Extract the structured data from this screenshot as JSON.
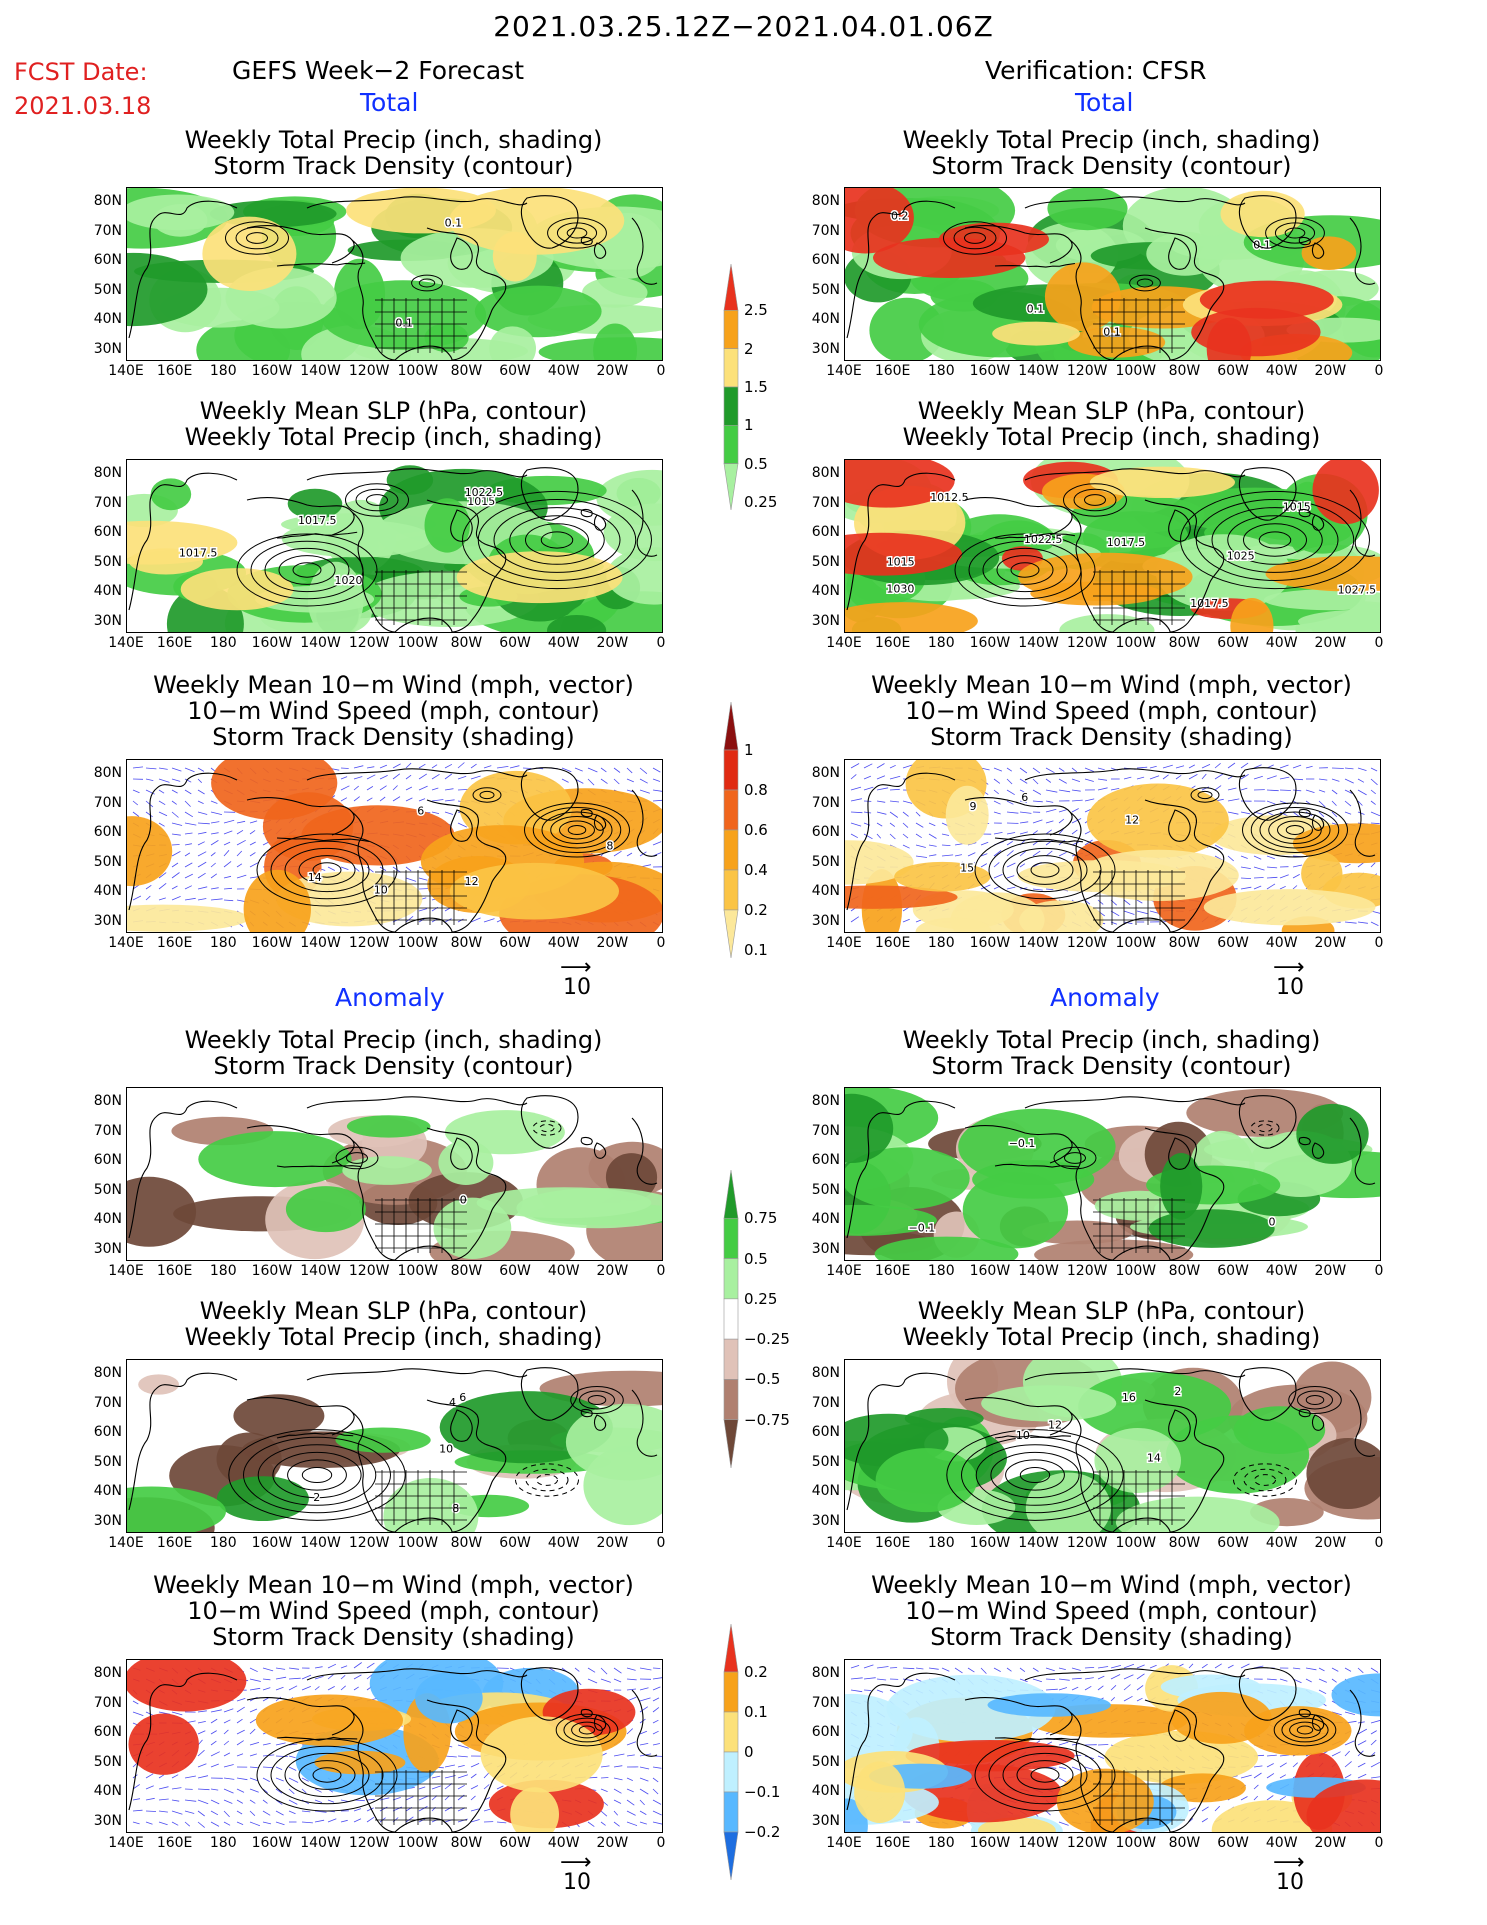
{
  "header": {
    "title": "2021.03.25.12Z−2021.04.01.06Z",
    "fcst_label": "FCST Date:",
    "fcst_date": "2021.03.18",
    "left_heading": "GEFS Week−2 Forecast",
    "right_heading": "Verification: CFSR",
    "total_label": "Total",
    "anomaly_label": "Anomaly"
  },
  "axes": {
    "lat_labels": [
      "80N",
      "70N",
      "60N",
      "50N",
      "40N",
      "30N"
    ],
    "lon_labels": [
      "140E",
      "160E",
      "180",
      "160W",
      "140W",
      "120W",
      "100W",
      "80W",
      "60W",
      "40W",
      "20W",
      "0"
    ]
  },
  "panel_titles": {
    "precip_storm": [
      "Weekly Total Precip (inch, shading)",
      "Storm Track Density (contour)"
    ],
    "slp_precip": [
      "Weekly Mean SLP (hPa, contour)",
      "Weekly Total Precip (inch, shading)"
    ],
    "wind": [
      "Weekly Mean 10−m Wind (mph, vector)",
      "10−m Wind Speed (mph, contour)",
      "Storm Track Density (shading)"
    ]
  },
  "vector_ref": "10",
  "colorbars": {
    "precip_total": {
      "labels": [
        "2.5",
        "2",
        "1.5",
        "1",
        "0.5",
        "0.25"
      ],
      "colors": [
        "#e8321e",
        "#f7a21b",
        "#fce17a",
        "#209a2a",
        "#44cc44",
        "#a8f0a0"
      ]
    },
    "storm_total": {
      "labels": [
        "1",
        "0.8",
        "0.6",
        "0.4",
        "0.2",
        "0.1"
      ],
      "colors": [
        "#8b0f0f",
        "#e02a12",
        "#f0651c",
        "#f7a21b",
        "#fbc445",
        "#fce89a"
      ]
    },
    "precip_anom": {
      "labels": [
        "0.75",
        "0.5",
        "0.25",
        "−0.25",
        "−0.5",
        "−0.75"
      ],
      "colors": [
        "#209a2a",
        "#44cc44",
        "#a8f0a0",
        "#ffffff",
        "#e0c2b8",
        "#b08070",
        "#6e4838"
      ]
    },
    "storm_anom": {
      "labels": [
        "0.2",
        "0.1",
        "0",
        "−0.1",
        "−0.2"
      ],
      "colors": [
        "#e8321e",
        "#f7a21b",
        "#fce17a",
        "#bff0ff",
        "#58b8ff",
        "#1e6ee0"
      ]
    }
  },
  "contour_labels": {
    "gefs_slp": [
      "1017.5",
      "1017.5",
      "1020",
      "1015",
      "1022.5"
    ],
    "cfsr_slp": [
      "1017.5",
      "1015",
      "1012.5",
      "1022.5",
      "1017.5",
      "1015",
      "1030",
      "1027.5",
      "1025"
    ],
    "gefs_precip_storm": [
      "0.1",
      "0.1"
    ],
    "cfsr_precip_storm": [
      "0.1",
      "0.1",
      "0.2",
      "0.1"
    ],
    "gefs_wind": [
      "8",
      "6",
      "10",
      "12",
      "14"
    ],
    "cfsr_wind": [
      "15",
      "12",
      "9",
      "6"
    ],
    "gefs_precip_anom": [
      "0"
    ],
    "cfsr_precip_anom": [
      "0",
      "−0.1",
      "−0.1"
    ],
    "gefs_slp_anom": [
      "2",
      "10",
      "8",
      "6",
      "4"
    ],
    "cfsr_slp_anom": [
      "16",
      "14",
      "12",
      "10",
      "2"
    ]
  }
}
